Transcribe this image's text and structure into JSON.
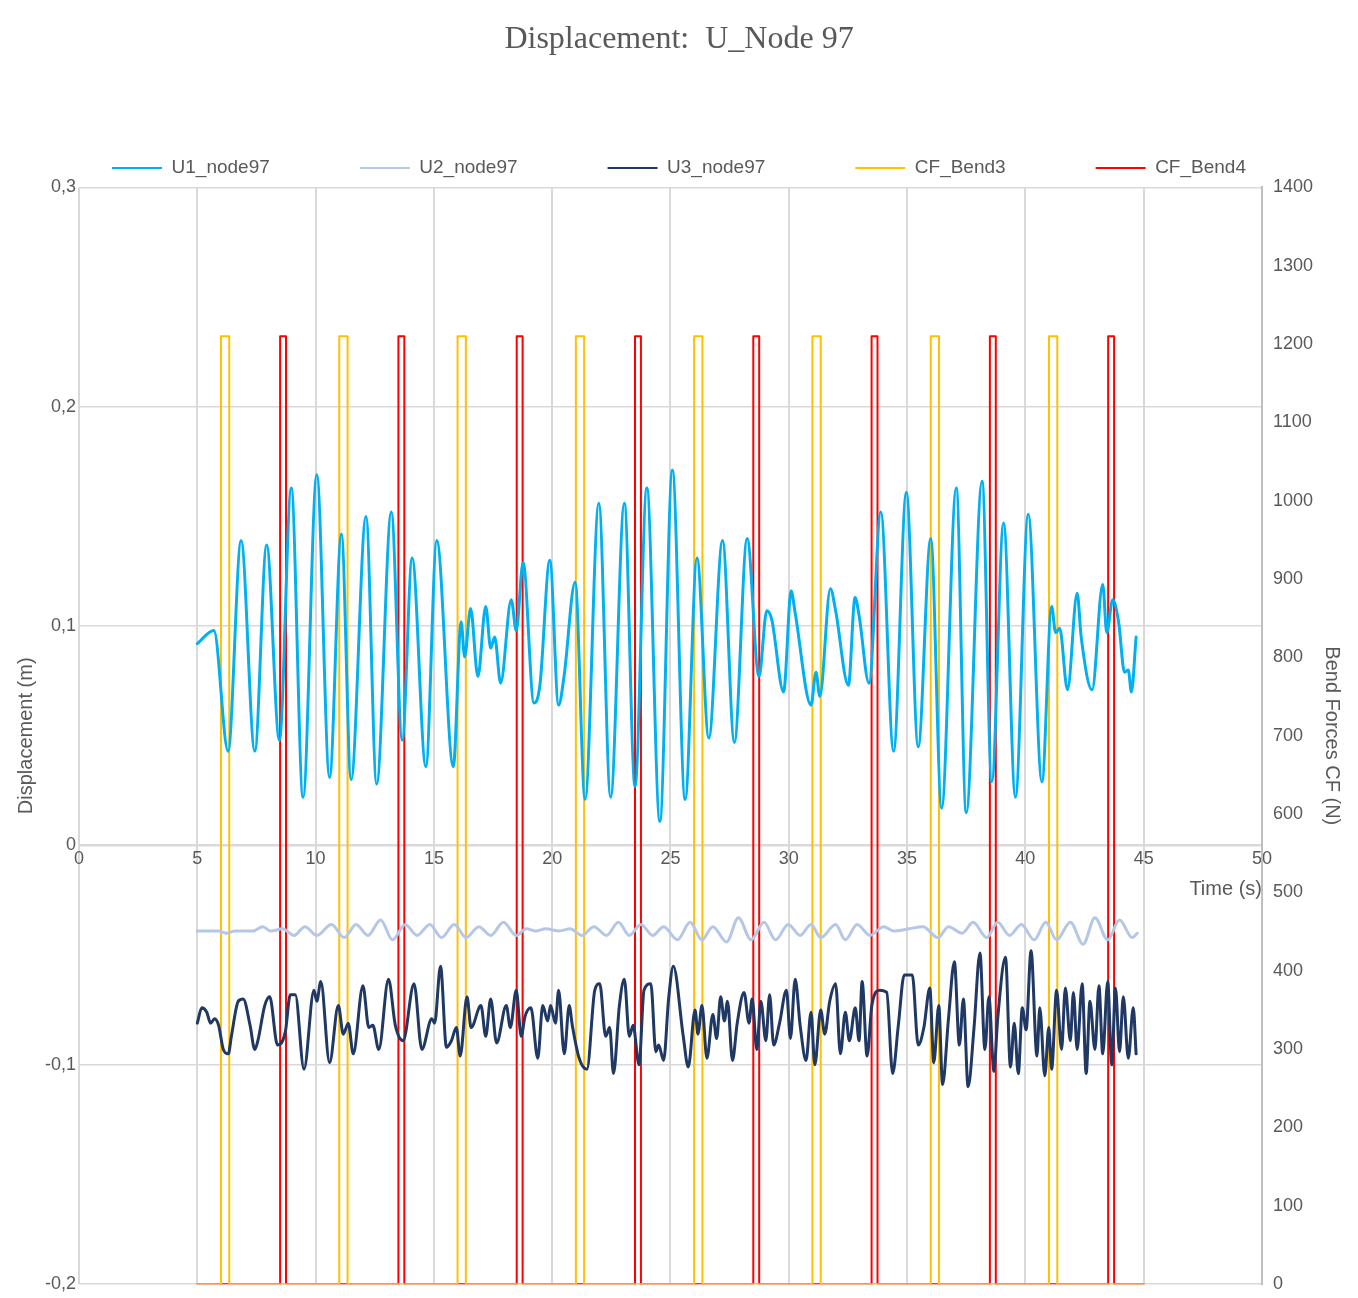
{
  "chart_data": {
    "type": "line",
    "title": "Displacement:  U_Node 97",
    "xlabel": "Time (s)",
    "ylabel": "Displacement (m)",
    "y2label": "Bend Forces CF (N)",
    "xlim": [
      0,
      50
    ],
    "xticks": [
      0,
      5,
      10,
      15,
      20,
      25,
      30,
      35,
      40,
      45,
      50
    ],
    "ylim": [
      -0.2,
      0.3
    ],
    "yticks": [
      {
        "value": -0.2,
        "label": "-0,2"
      },
      {
        "value": -0.1,
        "label": "-0,1"
      },
      {
        "value": 0,
        "label": "0"
      },
      {
        "value": 0.1,
        "label": "0,1"
      },
      {
        "value": 0.2,
        "label": "0,2"
      },
      {
        "value": 0.3,
        "label": "0,3"
      }
    ],
    "y2lim": [
      0,
      1400
    ],
    "y2ticks": [
      0,
      100,
      200,
      300,
      400,
      500,
      600,
      700,
      800,
      900,
      1000,
      1100,
      1200,
      1300,
      1400
    ],
    "grid": true,
    "legend": "top",
    "marker": "none",
    "series": [
      {
        "name": "U1_node97",
        "color": "#00b0f0",
        "x": [
          5.0,
          5.7,
          6.3,
          6.85,
          7.43,
          7.93,
          8.47,
          8.97,
          9.47,
          10.05,
          10.59,
          11.09,
          11.5,
          12.13,
          12.58,
          13.2,
          13.66,
          14.08,
          14.66,
          15.12,
          15.82,
          16.15,
          16.3,
          16.55,
          16.86,
          17.19,
          17.4,
          17.57,
          17.82,
          18.27,
          18.48,
          18.77,
          19.23,
          19.48,
          19.9,
          20.27,
          20.5,
          20.97,
          21.39,
          21.97,
          22.47,
          23.05,
          23.5,
          24.0,
          24.55,
          25.08,
          25.62,
          26.12,
          26.62,
          27.2,
          27.7,
          28.24,
          28.74,
          29.07,
          29.28,
          29.78,
          30.1,
          30.27,
          30.94,
          31.15,
          31.31,
          31.76,
          31.98,
          32.52,
          32.8,
          32.97,
          33.39,
          33.89,
          34.43,
          34.97,
          35.47,
          36.0,
          36.46,
          37.08,
          37.5,
          38.17,
          38.58,
          39.08,
          39.58,
          40.12,
          40.7,
          41.11,
          41.28,
          41.45,
          41.78,
          42.19,
          42.36,
          42.82,
          43.27,
          43.44,
          43.69,
          43.94,
          44.19,
          44.35,
          44.48,
          44.68
        ],
        "values": [
          0.092,
          0.098,
          0.043,
          0.139,
          0.043,
          0.137,
          0.048,
          0.163,
          0.022,
          0.169,
          0.031,
          0.142,
          0.03,
          0.15,
          0.028,
          0.152,
          0.048,
          0.131,
          0.036,
          0.139,
          0.036,
          0.102,
          0.086,
          0.108,
          0.077,
          0.109,
          0.09,
          0.095,
          0.074,
          0.112,
          0.098,
          0.129,
          0.065,
          0.073,
          0.13,
          0.064,
          0.077,
          0.12,
          0.021,
          0.156,
          0.022,
          0.156,
          0.027,
          0.163,
          0.011,
          0.171,
          0.021,
          0.131,
          0.049,
          0.139,
          0.047,
          0.14,
          0.077,
          0.107,
          0.103,
          0.07,
          0.116,
          0.106,
          0.064,
          0.079,
          0.068,
          0.117,
          0.107,
          0.073,
          0.113,
          0.105,
          0.074,
          0.152,
          0.043,
          0.161,
          0.045,
          0.14,
          0.017,
          0.163,
          0.015,
          0.166,
          0.029,
          0.147,
          0.022,
          0.151,
          0.029,
          0.109,
          0.097,
          0.099,
          0.071,
          0.115,
          0.095,
          0.071,
          0.119,
          0.097,
          0.112,
          0.102,
          0.079,
          0.08,
          0.07,
          0.095
        ]
      },
      {
        "name": "U2_node97",
        "color": "#b4c7e7",
        "x": [
          5.0,
          5.9,
          6.23,
          6.6,
          6.94,
          7.35,
          7.77,
          8.1,
          8.6,
          9.09,
          9.55,
          10.05,
          10.67,
          11.21,
          11.71,
          12.21,
          12.75,
          13.25,
          13.79,
          14.29,
          14.83,
          15.32,
          15.86,
          16.36,
          16.9,
          17.4,
          17.94,
          18.48,
          18.9,
          19.31,
          19.73,
          20.31,
          20.76,
          21.26,
          21.76,
          22.3,
          22.8,
          23.26,
          23.75,
          24.25,
          24.71,
          25.29,
          25.83,
          26.33,
          26.79,
          27.37,
          27.87,
          28.41,
          28.95,
          29.44,
          29.98,
          30.48,
          30.94,
          31.35,
          31.98,
          32.39,
          32.89,
          33.43,
          34.01,
          34.43,
          35.09,
          35.67,
          36.3,
          36.75,
          37.33,
          37.79,
          38.37,
          38.83,
          39.33,
          39.83,
          40.37,
          40.86,
          41.32,
          41.9,
          42.44,
          42.94,
          43.48,
          43.98,
          44.52,
          44.73
        ],
        "values": [
          -0.039,
          -0.039,
          -0.04,
          -0.039,
          -0.039,
          -0.039,
          -0.037,
          -0.039,
          -0.038,
          -0.041,
          -0.037,
          -0.041,
          -0.036,
          -0.042,
          -0.036,
          -0.041,
          -0.034,
          -0.043,
          -0.036,
          -0.041,
          -0.036,
          -0.042,
          -0.036,
          -0.042,
          -0.037,
          -0.041,
          -0.035,
          -0.041,
          -0.038,
          -0.039,
          -0.038,
          -0.039,
          -0.038,
          -0.041,
          -0.037,
          -0.041,
          -0.035,
          -0.041,
          -0.036,
          -0.041,
          -0.037,
          -0.043,
          -0.035,
          -0.043,
          -0.037,
          -0.044,
          -0.033,
          -0.043,
          -0.035,
          -0.043,
          -0.036,
          -0.041,
          -0.036,
          -0.042,
          -0.036,
          -0.043,
          -0.036,
          -0.041,
          -0.037,
          -0.039,
          -0.038,
          -0.037,
          -0.042,
          -0.037,
          -0.04,
          -0.035,
          -0.042,
          -0.035,
          -0.041,
          -0.036,
          -0.043,
          -0.035,
          -0.043,
          -0.035,
          -0.045,
          -0.033,
          -0.043,
          -0.034,
          -0.042,
          -0.04
        ]
      },
      {
        "name": "U3_node97",
        "color": "#1f3864",
        "x": [
          5.0,
          5.19,
          5.4,
          5.56,
          5.73,
          5.9,
          6.1,
          6.31,
          6.44,
          6.73,
          6.94,
          7.23,
          7.43,
          7.56,
          7.85,
          8.06,
          8.39,
          8.72,
          8.93,
          9.14,
          9.51,
          9.93,
          10.05,
          10.22,
          10.59,
          10.96,
          11.17,
          11.38,
          11.59,
          12.0,
          12.25,
          12.42,
          12.67,
          13.08,
          13.37,
          13.7,
          14.16,
          14.49,
          14.91,
          15.03,
          15.28,
          15.53,
          15.74,
          15.95,
          16.11,
          16.4,
          16.57,
          16.99,
          17.19,
          17.4,
          17.65,
          18.06,
          18.23,
          18.48,
          18.69,
          18.85,
          19.1,
          19.39,
          19.6,
          19.81,
          19.93,
          20.14,
          20.27,
          20.51,
          20.72,
          20.85,
          21.14,
          21.47,
          21.8,
          22.01,
          22.26,
          22.43,
          22.59,
          22.84,
          23.05,
          23.26,
          23.42,
          23.67,
          23.88,
          24.17,
          24.38,
          24.5,
          24.71,
          24.92,
          25.12,
          25.54,
          25.75,
          26.04,
          26.16,
          26.33,
          26.54,
          26.79,
          26.95,
          27.12,
          27.28,
          27.41,
          27.62,
          27.82,
          28.11,
          28.32,
          28.45,
          28.65,
          28.82,
          29.03,
          29.19,
          29.36,
          29.61,
          29.9,
          30.07,
          30.27,
          30.48,
          30.73,
          30.94,
          31.1,
          31.35,
          31.52,
          31.73,
          31.98,
          32.18,
          32.39,
          32.56,
          32.81,
          32.97,
          33.1,
          33.31,
          33.51,
          33.84,
          34.14,
          34.39,
          34.63,
          34.88,
          35.22,
          35.47,
          35.71,
          35.96,
          36.13,
          36.34,
          36.5,
          36.75,
          37.0,
          37.21,
          37.38,
          37.58,
          37.83,
          38.08,
          38.29,
          38.46,
          38.67,
          38.83,
          39.16,
          39.37,
          39.53,
          39.7,
          39.87,
          40.03,
          40.24,
          40.49,
          40.61,
          40.82,
          40.99,
          41.11,
          41.32,
          41.53,
          41.69,
          41.9,
          42.03,
          42.19,
          42.4,
          42.57,
          42.73,
          42.94,
          43.11,
          43.27,
          43.48,
          43.65,
          43.81,
          43.98,
          44.14,
          44.35,
          44.56,
          44.68
        ],
        "values": [
          -0.081,
          -0.074,
          -0.076,
          -0.081,
          -0.079,
          -0.082,
          -0.093,
          -0.095,
          -0.087,
          -0.071,
          -0.07,
          -0.082,
          -0.093,
          -0.089,
          -0.073,
          -0.069,
          -0.091,
          -0.085,
          -0.068,
          -0.068,
          -0.102,
          -0.066,
          -0.071,
          -0.062,
          -0.099,
          -0.073,
          -0.086,
          -0.081,
          -0.095,
          -0.064,
          -0.083,
          -0.082,
          -0.093,
          -0.061,
          -0.082,
          -0.089,
          -0.063,
          -0.093,
          -0.079,
          -0.081,
          -0.055,
          -0.092,
          -0.089,
          -0.083,
          -0.096,
          -0.069,
          -0.083,
          -0.073,
          -0.087,
          -0.07,
          -0.09,
          -0.073,
          -0.083,
          -0.066,
          -0.087,
          -0.078,
          -0.074,
          -0.097,
          -0.073,
          -0.08,
          -0.073,
          -0.081,
          -0.066,
          -0.095,
          -0.073,
          -0.082,
          -0.097,
          -0.102,
          -0.066,
          -0.063,
          -0.087,
          -0.083,
          -0.104,
          -0.073,
          -0.061,
          -0.087,
          -0.082,
          -0.1,
          -0.066,
          -0.063,
          -0.094,
          -0.091,
          -0.098,
          -0.07,
          -0.055,
          -0.087,
          -0.101,
          -0.075,
          -0.086,
          -0.073,
          -0.097,
          -0.077,
          -0.088,
          -0.069,
          -0.08,
          -0.071,
          -0.098,
          -0.081,
          -0.067,
          -0.081,
          -0.07,
          -0.093,
          -0.071,
          -0.089,
          -0.068,
          -0.091,
          -0.081,
          -0.066,
          -0.088,
          -0.061,
          -0.082,
          -0.098,
          -0.076,
          -0.1,
          -0.075,
          -0.086,
          -0.071,
          -0.063,
          -0.095,
          -0.076,
          -0.089,
          -0.074,
          -0.089,
          -0.062,
          -0.096,
          -0.073,
          -0.066,
          -0.067,
          -0.104,
          -0.082,
          -0.059,
          -0.059,
          -0.091,
          -0.083,
          -0.065,
          -0.099,
          -0.073,
          -0.109,
          -0.079,
          -0.053,
          -0.091,
          -0.07,
          -0.11,
          -0.083,
          -0.049,
          -0.093,
          -0.069,
          -0.103,
          -0.079,
          -0.051,
          -0.101,
          -0.081,
          -0.104,
          -0.074,
          -0.084,
          -0.048,
          -0.096,
          -0.074,
          -0.105,
          -0.083,
          -0.102,
          -0.066,
          -0.093,
          -0.065,
          -0.089,
          -0.067,
          -0.093,
          -0.063,
          -0.104,
          -0.071,
          -0.093,
          -0.064,
          -0.095,
          -0.062,
          -0.1,
          -0.065,
          -0.094,
          -0.069,
          -0.097,
          -0.074,
          -0.095
        ]
      },
      {
        "name": "CF_Bend3",
        "color": "#ffc000",
        "axis": "y2",
        "x": [
          5,
          6,
          6,
          6.35,
          6.35,
          11,
          11,
          11.35,
          11.35,
          16,
          16,
          16.35,
          16.35,
          21,
          21,
          21.35,
          21.35,
          26,
          26,
          26.35,
          26.35,
          31,
          31,
          31.35,
          31.35,
          36,
          36,
          36.35,
          36.35,
          41,
          41,
          41.35,
          41.35,
          45
        ],
        "values": [
          0,
          0,
          1210,
          1210,
          0,
          0,
          1210,
          1210,
          0,
          0,
          1210,
          1210,
          0,
          0,
          1210,
          1210,
          0,
          0,
          1210,
          1210,
          0,
          0,
          1210,
          1210,
          0,
          0,
          1210,
          1210,
          0,
          0,
          1210,
          1210,
          0,
          0
        ]
      },
      {
        "name": "CF_Bend4",
        "color": "#ff0000",
        "axis": "y2",
        "x": [
          5,
          8.5,
          8.5,
          8.75,
          8.75,
          13.5,
          13.5,
          13.75,
          13.75,
          18.5,
          18.5,
          18.75,
          18.75,
          23.5,
          23.5,
          23.75,
          23.75,
          28.5,
          28.5,
          28.75,
          28.75,
          33.5,
          33.5,
          33.75,
          33.75,
          38.5,
          38.5,
          38.75,
          38.75,
          43.5,
          43.5,
          43.75,
          43.75,
          45
        ],
        "values": [
          0,
          0,
          1210,
          1210,
          0,
          0,
          1210,
          1210,
          0,
          0,
          1210,
          1210,
          0,
          0,
          1210,
          1210,
          0,
          0,
          1210,
          1210,
          0,
          0,
          1210,
          1210,
          0,
          0,
          1210,
          1210,
          0,
          0,
          1210,
          1210,
          0,
          0
        ]
      }
    ]
  }
}
